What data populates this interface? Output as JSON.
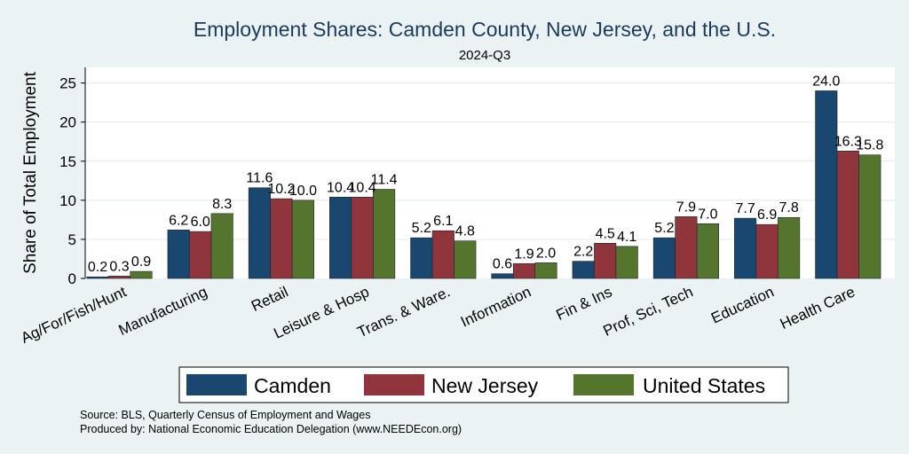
{
  "chart_data": {
    "type": "bar",
    "title": "Employment Shares: Camden County, New Jersey, and the U.S.",
    "subtitle": "2024-Q3",
    "ylabel": "Share of Total Employment",
    "xlabel": "",
    "ylim": [
      0,
      27
    ],
    "yticks": [
      0,
      5,
      10,
      15,
      20,
      25
    ],
    "grid": true,
    "legend_position": "bottom",
    "categories": [
      "Ag/For/Fish/Hunt",
      "Manufacturing",
      "Retail",
      "Leisure & Hosp",
      "Trans. & Ware.",
      "Information",
      "Fin & Ins",
      "Prof, Sci, Tech",
      "Education",
      "Health Care"
    ],
    "series": [
      {
        "name": "Camden",
        "color": "#1a476f",
        "values": [
          0.2,
          6.2,
          11.6,
          10.4,
          5.2,
          0.6,
          2.2,
          5.2,
          7.7,
          24.0
        ]
      },
      {
        "name": "New Jersey",
        "color": "#90353b",
        "values": [
          0.3,
          6.0,
          10.2,
          10.4,
          6.1,
          1.9,
          4.5,
          7.9,
          6.9,
          16.3
        ]
      },
      {
        "name": "United States",
        "color": "#55752f",
        "values": [
          0.9,
          8.3,
          10.0,
          11.4,
          4.8,
          2.0,
          4.1,
          7.0,
          7.8,
          15.8
        ]
      }
    ],
    "notes": [
      "Source: BLS, Quarterly Census of Employment and Wages",
      "Produced by: National Economic Education Delegation (www.NEEDEcon.org)"
    ]
  }
}
